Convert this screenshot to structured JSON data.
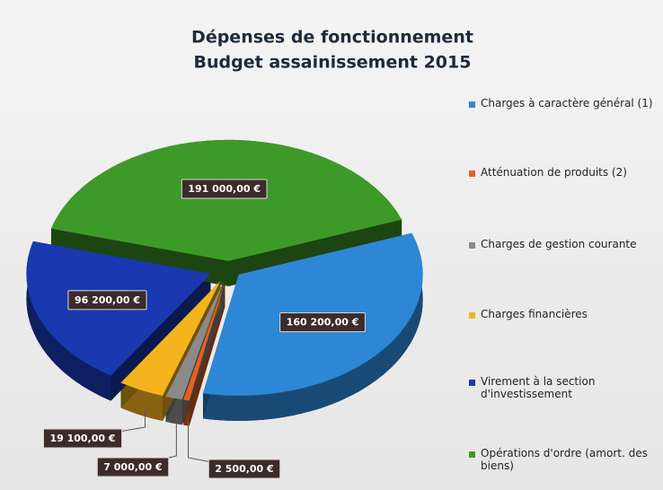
{
  "chart_data": {
    "type": "pie3d",
    "title": "Dépenses de fonctionnement",
    "subtitle": "Budget assainissement 2015",
    "categories": [
      "Charges à caractère général (1)",
      "Atténuation de produits (2)",
      "Charges de gestion courante",
      "Charges financières",
      "Virement à la section d'investissement",
      "Opérations d'ordre (amort. des biens)"
    ],
    "values": [
      160200,
      2500,
      7000,
      19100,
      96200,
      191000
    ],
    "value_labels": [
      "160 200,00 €",
      "2 500,00 €",
      "7 000,00 €",
      "19 100,00 €",
      "96 200,00 €",
      "191 000,00 €"
    ],
    "colors": [
      "#2e86d6",
      "#e8601e",
      "#8a8a8a",
      "#f5b41e",
      "#1a38b0",
      "#3e9a28"
    ],
    "legend": "right"
  }
}
